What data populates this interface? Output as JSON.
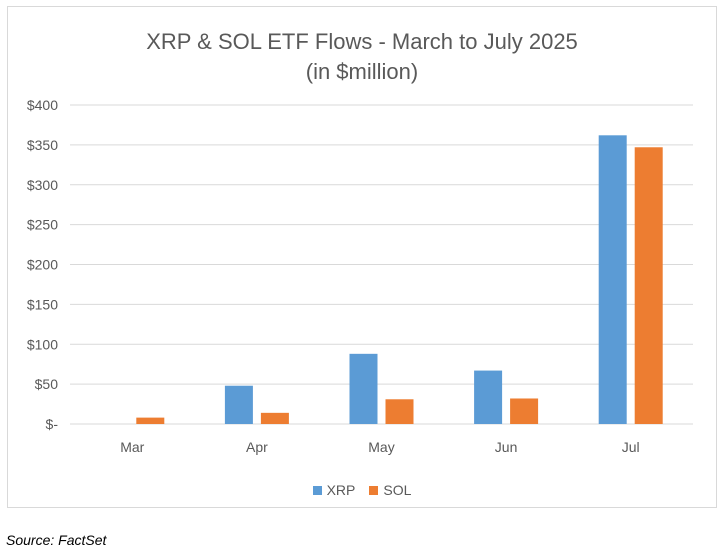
{
  "chart_data": {
    "type": "bar",
    "title": "XRP & SOL ETF Flows - March to July 2025",
    "subtitle": "(in $million)",
    "categories": [
      "Mar",
      "Apr",
      "May",
      "Jun",
      "Jul"
    ],
    "series": [
      {
        "name": "XRP",
        "color": "#5b9bd5",
        "values": [
          0,
          48,
          88,
          67,
          362
        ]
      },
      {
        "name": "SOL",
        "color": "#ed7d31",
        "values": [
          8,
          14,
          31,
          32,
          347
        ]
      }
    ],
    "ylim": [
      0,
      400
    ],
    "yticks": [
      0,
      50,
      100,
      150,
      200,
      250,
      300,
      350,
      400
    ],
    "ytick_labels": [
      "$-",
      "$50",
      "$100",
      "$150",
      "$200",
      "$250",
      "$300",
      "$350",
      "$400"
    ],
    "grid": true,
    "legend_position": "bottom",
    "xlabel": "",
    "ylabel": ""
  },
  "source": "Source: FactSet"
}
